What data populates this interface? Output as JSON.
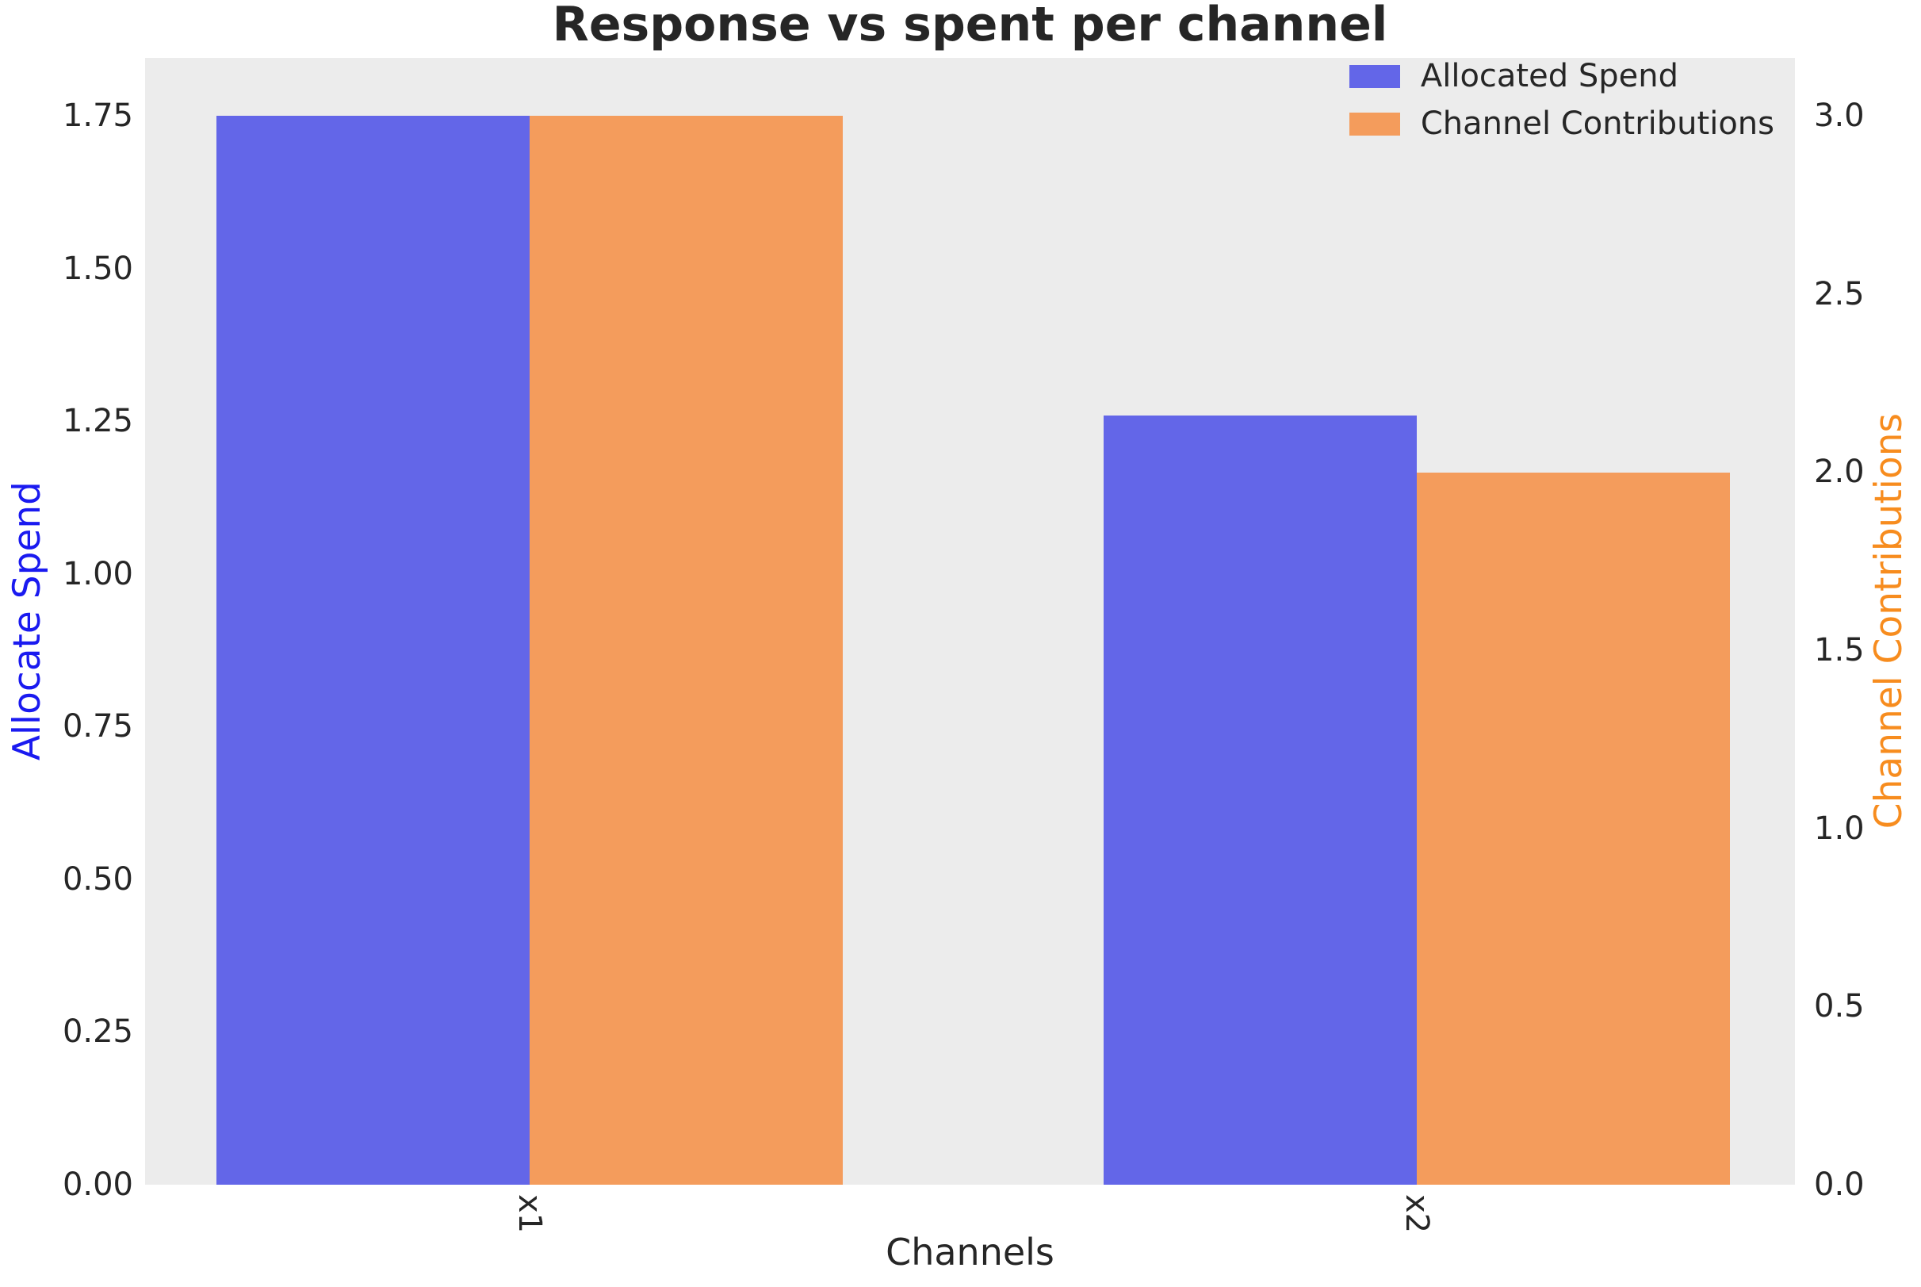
{
  "title": "Response vs spent per channel",
  "colors": {
    "figure_bg": "#FFFFFF",
    "plot_bg": "#ECECEC",
    "spend_bar": "#6366E8",
    "contribution_bar": "#F49C5C",
    "left_axis_label": "#1A1AF0",
    "right_axis_label": "#F78C1E",
    "tick_text": "#262626"
  },
  "legend": {
    "items": [
      {
        "label": "Allocated Spend",
        "color": "#6366E8"
      },
      {
        "label": "Channel Contributions",
        "color": "#F49C5C"
      }
    ],
    "position": "upper right"
  },
  "chart_data": {
    "type": "bar",
    "title": "Response vs spent per channel",
    "xlabel": "Channels",
    "ylabel_left": "Allocate Spend",
    "ylabel_right": "Channel Contributions",
    "categories": [
      "x1",
      "x2"
    ],
    "series": [
      {
        "name": "Allocated Spend",
        "axis": "left",
        "color": "#6366E8",
        "values": [
          1.75,
          1.26
        ]
      },
      {
        "name": "Channel Contributions",
        "axis": "right",
        "color": "#F49C5C",
        "values": [
          3.0,
          2.0
        ]
      }
    ],
    "ylim_left": [
      0,
      1.845
    ],
    "ylim_right": [
      0,
      3.163
    ],
    "yticks_left": [
      "0.00",
      "0.25",
      "0.50",
      "0.75",
      "1.00",
      "1.25",
      "1.50",
      "1.75"
    ],
    "yticks_right": [
      "0.0",
      "0.5",
      "1.0",
      "1.5",
      "2.0",
      "2.5",
      "3.0"
    ],
    "xtick_rotation": 90,
    "grid": false,
    "legend_position": "upper right"
  }
}
